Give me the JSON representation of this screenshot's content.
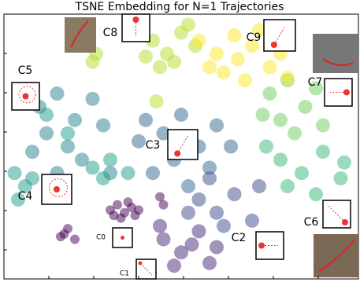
{
  "chart_data": {
    "type": "scatter",
    "title": "TSNE Embedding for N=1 Trajectories",
    "xlim": [
      0,
      100
    ],
    "ylim": [
      0,
      100
    ],
    "series": [
      {
        "name": "C0",
        "color": "#440154",
        "x": [
          30,
          32,
          34,
          36,
          38,
          33,
          35,
          31,
          37,
          44,
          45,
          17,
          20,
          18,
          16
        ],
        "y": [
          26,
          28,
          25,
          27,
          26,
          23,
          29,
          24,
          24,
          31,
          28,
          17,
          15,
          19,
          16
        ]
      },
      {
        "name": "C1",
        "color": "#482878",
        "x": [
          45,
          50,
          55,
          60,
          48,
          58,
          53,
          44
        ],
        "y": [
          15,
          10,
          18,
          12,
          5,
          6,
          13,
          20
        ]
      },
      {
        "name": "C2",
        "color": "#3e4989",
        "x": [
          55,
          60,
          65,
          70,
          58,
          72,
          62,
          52
        ],
        "y": [
          30,
          25,
          32,
          22,
          38,
          35,
          20,
          25
        ]
      },
      {
        "name": "C3",
        "color": "#31688e",
        "x": [
          40,
          45,
          50,
          55,
          60,
          48,
          42,
          58,
          52,
          64,
          38
        ],
        "y": [
          60,
          55,
          62,
          50,
          58,
          45,
          40,
          42,
          35,
          50,
          52
        ]
      },
      {
        "name": "C4",
        "color": "#26828e",
        "x": [
          10,
          15,
          20,
          25,
          12,
          18,
          28,
          22,
          8,
          30,
          15
        ],
        "y": [
          65,
          70,
          60,
          68,
          55,
          50,
          58,
          45,
          48,
          40,
          40
        ]
      },
      {
        "name": "C5",
        "color": "#1f9e89",
        "x": [
          4,
          6,
          8,
          3,
          25,
          30,
          35,
          28,
          18,
          12
        ],
        "y": [
          30,
          35,
          38,
          40,
          42,
          45,
          40,
          38,
          55,
          62
        ]
      },
      {
        "name": "C6",
        "color": "#35b779",
        "x": [
          78,
          84,
          90,
          95,
          80,
          88,
          96,
          74
        ],
        "y": [
          45,
          40,
          48,
          38,
          35,
          32,
          44,
          50
        ]
      },
      {
        "name": "C7",
        "color": "#6ece58",
        "x": [
          75,
          80,
          85,
          78,
          88,
          82,
          73,
          90
        ],
        "y": [
          70,
          75,
          65,
          60,
          72,
          55,
          62,
          58
        ]
      },
      {
        "name": "C8",
        "color": "#b5de2b",
        "x": [
          42,
          46,
          50,
          54,
          44,
          48,
          52,
          40,
          25,
          26,
          43
        ],
        "y": [
          90,
          85,
          93,
          88,
          80,
          82,
          96,
          84,
          82,
          85,
          67
        ]
      },
      {
        "name": "C9",
        "color": "#fde725",
        "x": [
          55,
          60,
          65,
          70,
          75,
          78,
          62,
          68,
          72,
          58,
          80,
          66
        ],
        "y": [
          90,
          85,
          92,
          88,
          80,
          85,
          78,
          75,
          94,
          80,
          76,
          83
        ]
      }
    ]
  }
}
